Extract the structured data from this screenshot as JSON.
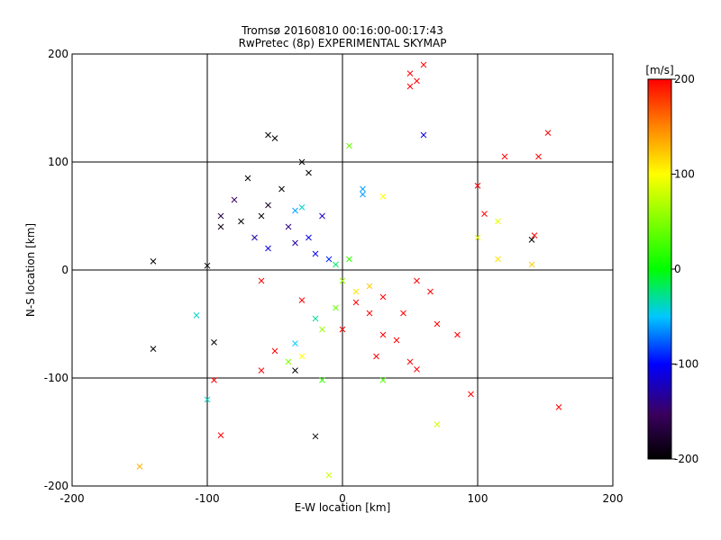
{
  "chart_data": {
    "type": "scatter",
    "title": "Tromsø 20160810 00:16:00-00:17:43",
    "subtitle": "RwPretec (8p) EXPERIMENTAL SKYMAP",
    "xlabel": "E-W location [km]",
    "ylabel": "N-S location [km]",
    "xlim": [
      -200,
      200
    ],
    "ylim": [
      -200,
      200
    ],
    "x_ticks": [
      "-200",
      "-100",
      "0",
      "100",
      "200"
    ],
    "y_ticks": [
      "-200",
      "-100",
      "0",
      "100",
      "200"
    ],
    "grid": true,
    "colorbar": {
      "label": "[m/s]",
      "range": [
        -200,
        200
      ],
      "ticks": [
        "200",
        "100",
        "0",
        "-100",
        "-200"
      ]
    },
    "marker_legend": "small dots and 'x' crosses, color = velocity",
    "points": [
      {
        "x": -60,
        "y": 50,
        "v": -200,
        "m": "x"
      },
      {
        "x": -75,
        "y": 45,
        "v": -200,
        "m": "x"
      },
      {
        "x": -90,
        "y": 40,
        "v": -190,
        "m": "x"
      },
      {
        "x": -55,
        "y": 60,
        "v": -180,
        "m": "x"
      },
      {
        "x": -70,
        "y": 85,
        "v": -200,
        "m": "x"
      },
      {
        "x": -55,
        "y": 125,
        "v": -200,
        "m": "x"
      },
      {
        "x": -50,
        "y": 122,
        "v": -200,
        "m": "x"
      },
      {
        "x": -45,
        "y": 75,
        "v": -200,
        "m": "x"
      },
      {
        "x": -30,
        "y": 100,
        "v": -200,
        "m": "x"
      },
      {
        "x": -25,
        "y": 90,
        "v": -200,
        "m": "x"
      },
      {
        "x": -140,
        "y": 8,
        "v": -200,
        "m": "x"
      },
      {
        "x": -100,
        "y": 4,
        "v": -200,
        "m": "x"
      },
      {
        "x": -140,
        "y": -73,
        "v": -200,
        "m": "x"
      },
      {
        "x": -95,
        "y": -67,
        "v": -200,
        "m": "x"
      },
      {
        "x": -35,
        "y": -93,
        "v": -200,
        "m": "x"
      },
      {
        "x": -20,
        "y": -154,
        "v": -200,
        "m": "x"
      },
      {
        "x": 140,
        "y": 28,
        "v": -200,
        "m": "x"
      },
      {
        "x": -80,
        "y": 65,
        "v": -150,
        "m": "x"
      },
      {
        "x": -40,
        "y": 40,
        "v": -140,
        "m": "x"
      },
      {
        "x": -35,
        "y": 25,
        "v": -130,
        "m": "x"
      },
      {
        "x": -25,
        "y": 30,
        "v": -110,
        "m": "x"
      },
      {
        "x": -15,
        "y": 50,
        "v": -120,
        "m": "x"
      },
      {
        "x": -20,
        "y": 15,
        "v": -100,
        "m": "x"
      },
      {
        "x": -10,
        "y": 10,
        "v": -90,
        "m": "x"
      },
      {
        "x": -55,
        "y": 20,
        "v": -110,
        "m": "x"
      },
      {
        "x": -65,
        "y": 30,
        "v": -130,
        "m": "x"
      },
      {
        "x": -90,
        "y": 50,
        "v": -170,
        "m": "x"
      },
      {
        "x": -35,
        "y": 55,
        "v": -60,
        "m": "x"
      },
      {
        "x": -30,
        "y": 58,
        "v": -40,
        "m": "x"
      },
      {
        "x": 15,
        "y": 75,
        "v": -60,
        "m": "x"
      },
      {
        "x": 15,
        "y": 70,
        "v": -60,
        "m": "x"
      },
      {
        "x": 60,
        "y": 125,
        "v": -110,
        "m": "x"
      },
      {
        "x": -100,
        "y": -120,
        "v": -40,
        "m": "x"
      },
      {
        "x": -108,
        "y": -42,
        "v": -40,
        "m": "x"
      },
      {
        "x": -35,
        "y": -68,
        "v": -50,
        "m": "x"
      },
      {
        "x": -20,
        "y": -45,
        "v": -30,
        "m": "x"
      },
      {
        "x": -5,
        "y": 5,
        "v": -20,
        "m": "x"
      },
      {
        "x": 5,
        "y": 10,
        "v": 20,
        "m": "x"
      },
      {
        "x": 0,
        "y": -10,
        "v": 60,
        "m": "x"
      },
      {
        "x": 10,
        "y": -20,
        "v": 110,
        "m": "x"
      },
      {
        "x": 20,
        "y": -15,
        "v": 120,
        "m": "x"
      },
      {
        "x": -5,
        "y": -35,
        "v": 40,
        "m": "x"
      },
      {
        "x": -15,
        "y": -55,
        "v": 60,
        "m": "x"
      },
      {
        "x": -30,
        "y": -80,
        "v": 100,
        "m": "x"
      },
      {
        "x": -40,
        "y": -85,
        "v": 50,
        "m": "x"
      },
      {
        "x": 30,
        "y": -102,
        "v": 30,
        "m": "x"
      },
      {
        "x": -15,
        "y": -102,
        "v": 20,
        "m": "x"
      },
      {
        "x": 70,
        "y": -143,
        "v": 80,
        "m": "x"
      },
      {
        "x": -150,
        "y": -182,
        "v": 130,
        "m": "x"
      },
      {
        "x": -10,
        "y": -190,
        "v": 80,
        "m": "x"
      },
      {
        "x": 100,
        "y": 30,
        "v": 90,
        "m": "x"
      },
      {
        "x": 115,
        "y": 45,
        "v": 90,
        "m": "x"
      },
      {
        "x": 115,
        "y": 10,
        "v": 110,
        "m": "x"
      },
      {
        "x": 140,
        "y": 5,
        "v": 120,
        "m": "x"
      },
      {
        "x": 30,
        "y": 68,
        "v": 100,
        "m": "x"
      },
      {
        "x": 5,
        "y": 115,
        "v": 40,
        "m": "x"
      },
      {
        "x": 60,
        "y": 190,
        "v": 200,
        "m": "x"
      },
      {
        "x": 50,
        "y": 182,
        "v": 200,
        "m": "x"
      },
      {
        "x": 55,
        "y": 175,
        "v": 200,
        "m": "x"
      },
      {
        "x": 50,
        "y": 170,
        "v": 200,
        "m": "x"
      },
      {
        "x": 120,
        "y": 105,
        "v": 200,
        "m": "x"
      },
      {
        "x": 145,
        "y": 105,
        "v": 200,
        "m": "x"
      },
      {
        "x": 152,
        "y": 127,
        "v": 200,
        "m": "x"
      },
      {
        "x": 100,
        "y": 78,
        "v": 200,
        "m": "x"
      },
      {
        "x": 105,
        "y": 52,
        "v": 200,
        "m": "x"
      },
      {
        "x": 142,
        "y": 32,
        "v": 200,
        "m": "x"
      },
      {
        "x": 30,
        "y": -25,
        "v": 200,
        "m": "x"
      },
      {
        "x": 55,
        "y": -10,
        "v": 200,
        "m": "x"
      },
      {
        "x": 65,
        "y": -20,
        "v": 200,
        "m": "x"
      },
      {
        "x": 45,
        "y": -40,
        "v": 200,
        "m": "x"
      },
      {
        "x": 70,
        "y": -50,
        "v": 200,
        "m": "x"
      },
      {
        "x": 85,
        "y": -60,
        "v": 200,
        "m": "x"
      },
      {
        "x": 40,
        "y": -65,
        "v": 200,
        "m": "x"
      },
      {
        "x": 50,
        "y": -85,
        "v": 200,
        "m": "x"
      },
      {
        "x": 55,
        "y": -92,
        "v": 200,
        "m": "x"
      },
      {
        "x": 95,
        "y": -115,
        "v": 200,
        "m": "x"
      },
      {
        "x": 160,
        "y": -127,
        "v": 200,
        "m": "x"
      },
      {
        "x": -90,
        "y": -153,
        "v": 200,
        "m": "x"
      },
      {
        "x": -95,
        "y": -102,
        "v": 200,
        "m": "x"
      },
      {
        "x": -60,
        "y": -93,
        "v": 200,
        "m": "x"
      },
      {
        "x": -50,
        "y": -75,
        "v": 200,
        "m": "x"
      },
      {
        "x": -60,
        "y": -10,
        "v": 200,
        "m": "x"
      },
      {
        "x": -30,
        "y": -28,
        "v": 200,
        "m": "x"
      },
      {
        "x": 10,
        "y": -30,
        "v": 200,
        "m": "x"
      },
      {
        "x": 0,
        "y": -55,
        "v": 200,
        "m": "x"
      },
      {
        "x": 20,
        "y": -40,
        "v": 200,
        "m": "x"
      },
      {
        "x": 30,
        "y": -60,
        "v": 200,
        "m": "x"
      },
      {
        "x": 25,
        "y": -80,
        "v": 200,
        "m": "x"
      }
    ]
  }
}
